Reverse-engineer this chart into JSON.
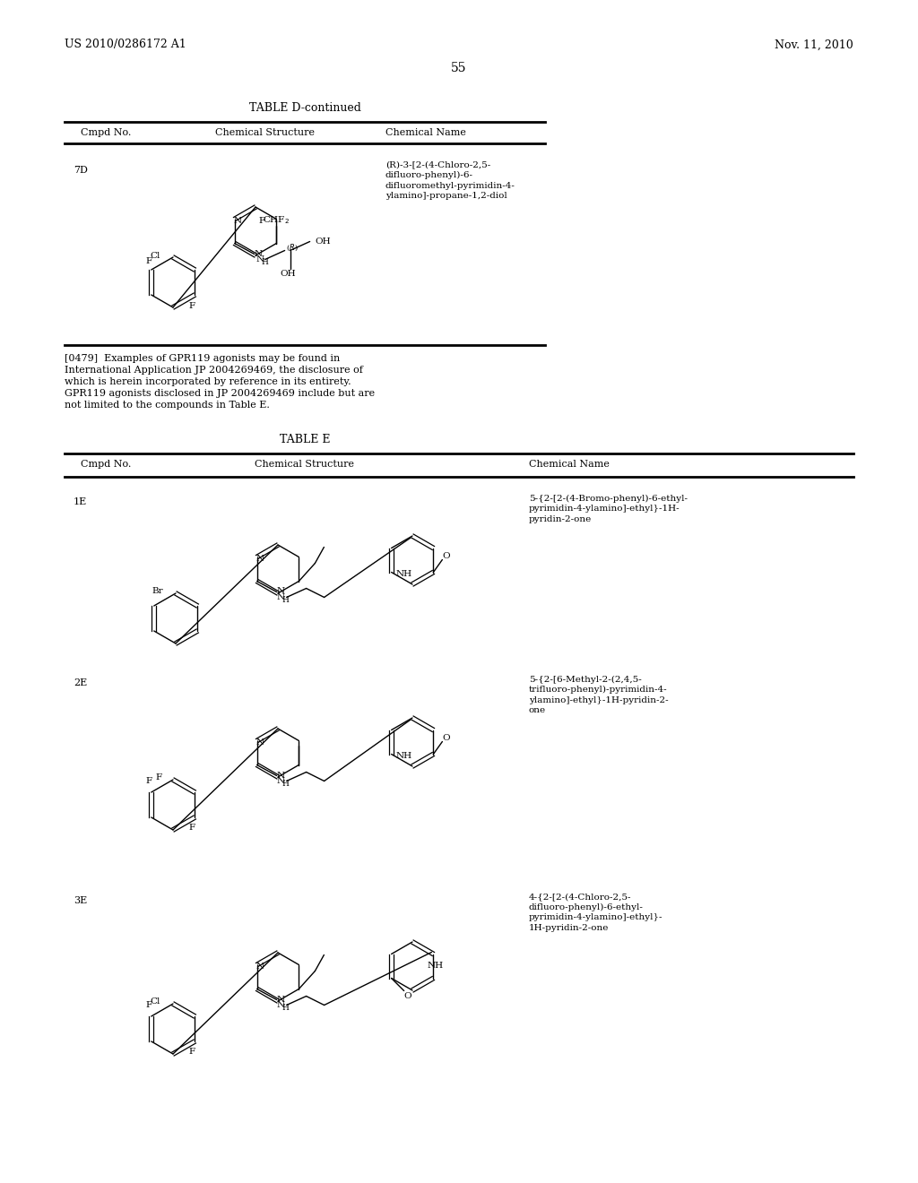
{
  "background_color": "#ffffff",
  "header_left": "US 2010/0286172 A1",
  "header_right": "Nov. 11, 2010",
  "page_number": "55",
  "table_d_title": "TABLE D-continued",
  "table_d_headers": [
    "Cmpd No.",
    "Chemical Structure",
    "Chemical Name"
  ],
  "table_d_row_cmpd": "7D",
  "table_d_row_name": [
    "(R)-3-[2-(4-Chloro-2,5-",
    "difluoro-phenyl)-6-",
    "difluoromethyl-pyrimidin-4-",
    "ylamino]-propane-1,2-diol"
  ],
  "paragraph_lines": [
    "[0479]  Examples of GPR119 agonists may be found in",
    "International Application JP 2004269469, the disclosure of",
    "which is herein incorporated by reference in its entirety.",
    "GPR119 agonists disclosed in JP 2004269469 include but are",
    "not limited to the compounds in Table E."
  ],
  "table_e_title": "TABLE E",
  "table_e_headers": [
    "Cmpd No.",
    "Chemical Structure",
    "Chemical Name"
  ],
  "row_1e_cmpd": "1E",
  "row_1e_name": [
    "5-{2-[2-(4-Bromo-phenyl)-6-ethyl-",
    "pyrimidin-4-ylamino]-ethyl}-1H-",
    "pyridin-2-one"
  ],
  "row_2e_cmpd": "2E",
  "row_2e_name": [
    "5-{2-[6-Methyl-2-(2,4,5-",
    "trifluoro-phenyl)-pyrimidin-4-",
    "ylamino]-ethyl}-1H-pyridin-2-",
    "one"
  ],
  "row_3e_cmpd": "3E",
  "row_3e_name": [
    "4-{2-[2-(4-Chloro-2,5-",
    "difluoro-phenyl)-6-ethyl-",
    "pyrimidin-4-ylamino]-ethyl}-",
    "1H-pyridin-2-one"
  ]
}
